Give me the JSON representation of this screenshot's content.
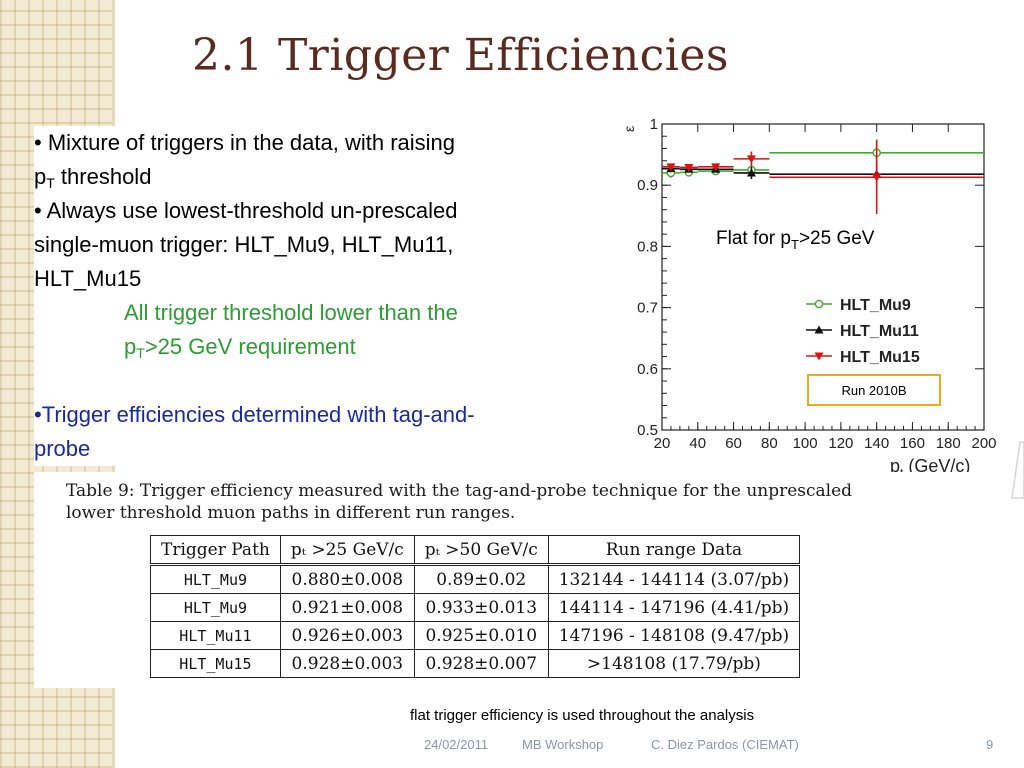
{
  "slide": {
    "title": "2.1 Trigger Efficiencies",
    "bullets": [
      {
        "pre": "• Mixture of triggers in the data, with raising",
        "line2_pre": "p",
        "line2_sub": "T",
        "line2_post": " threshold"
      },
      {
        "line1": "• Always use lowest-threshold un-prescaled",
        "line2": "single-muon trigger: HLT_Mu9, HLT_Mu11,",
        "line3": "HLT_Mu15"
      }
    ],
    "green_note": {
      "line1": "All trigger threshold lower than the",
      "line2_pre": "p",
      "line2_sub": "T",
      "line2_post": ">25 GeV requirement"
    },
    "blue_bullet": {
      "line1": "•Trigger efficiencies determined with tag-and-",
      "line2": "probe"
    },
    "bottom_note": "flat trigger efficiency is used throughout the analysis",
    "footer": {
      "date": "24/02/2011",
      "event": "MB Workshop",
      "author": "C. Diez Pardos (CIEMAT)",
      "page": "9"
    }
  },
  "table": {
    "caption_line1": "Table 9:  Trigger efficiency measured with the tag-and-probe technique for the unprescaled",
    "caption_line2": "lower threshold muon paths in different run ranges.",
    "headers": [
      "Trigger Path",
      "pₜ >25 GeV/c",
      "pₜ >50 GeV/c",
      "Run range Data"
    ],
    "rows": [
      [
        "HLT_Mu9",
        "0.880±0.008",
        "0.89±0.02",
        "132144 - 144114 (3.07/pb)"
      ],
      [
        "HLT_Mu9",
        "0.921±0.008",
        "0.933±0.013",
        "144114 - 147196 (4.41/pb)"
      ],
      [
        "HLT_Mu11",
        "0.926±0.003",
        "0.925±0.010",
        "147196 - 148108 (9.47/pb)"
      ],
      [
        "HLT_Mu15",
        "0.928±0.003",
        "0.928±0.007",
        ">148108 (17.79/pb)"
      ]
    ]
  },
  "chart_data": {
    "type": "scatter",
    "ylabel": "ε",
    "xlabel": "p",
    "xlabel_sub": "t",
    "xlabel_unit": " (GeV/c)",
    "xlim": [
      20,
      200
    ],
    "ylim": [
      0.5,
      1.0
    ],
    "xticks": [
      20,
      40,
      60,
      80,
      100,
      120,
      140,
      160,
      180,
      200
    ],
    "yticks": [
      0.5,
      0.6,
      0.7,
      0.8,
      0.9,
      1
    ],
    "annotation_pre": "Flat for p",
    "annotation_sub": "T",
    "annotation_post": ">25 GeV",
    "run_label": "Run 2010B",
    "series": [
      {
        "name": "HLT_Mu9",
        "color": "#44aa33",
        "marker": "circle-open",
        "points": [
          {
            "x": 25,
            "y": 0.92,
            "xerr": 5,
            "yerr": 0.008
          },
          {
            "x": 35,
            "y": 0.921,
            "xerr": 5,
            "yerr": 0.006
          },
          {
            "x": 50,
            "y": 0.923,
            "xerr": 10,
            "yerr": 0.006
          },
          {
            "x": 70,
            "y": 0.925,
            "xerr": 10,
            "yerr": 0.01
          },
          {
            "x": 140,
            "y": 0.953,
            "xerr": 60,
            "yerr": 0.022
          }
        ]
      },
      {
        "name": "HLT_Mu11",
        "color": "#111111",
        "marker": "triangle",
        "points": [
          {
            "x": 25,
            "y": 0.927,
            "xerr": 5,
            "yerr": 0.006
          },
          {
            "x": 35,
            "y": 0.926,
            "xerr": 5,
            "yerr": 0.005
          },
          {
            "x": 50,
            "y": 0.926,
            "xerr": 10,
            "yerr": 0.005
          },
          {
            "x": 70,
            "y": 0.92,
            "xerr": 10,
            "yerr": 0.01
          },
          {
            "x": 140,
            "y": 0.918,
            "xerr": 60,
            "yerr": 0.015
          }
        ]
      },
      {
        "name": "HLT_Mu15",
        "color": "#dd1111",
        "marker": "triangle-down",
        "points": [
          {
            "x": 25,
            "y": 0.93,
            "xerr": 5,
            "yerr": 0.005
          },
          {
            "x": 35,
            "y": 0.929,
            "xerr": 5,
            "yerr": 0.004
          },
          {
            "x": 50,
            "y": 0.93,
            "xerr": 10,
            "yerr": 0.004
          },
          {
            "x": 70,
            "y": 0.943,
            "xerr": 10,
            "yerr": 0.012
          },
          {
            "x": 140,
            "y": 0.913,
            "xerr": 60,
            "yerr": 0.06
          }
        ]
      }
    ]
  }
}
